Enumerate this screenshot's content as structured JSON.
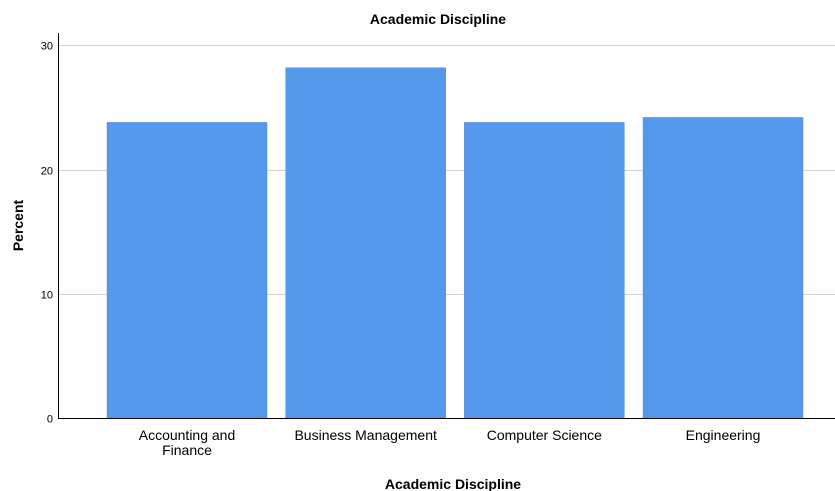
{
  "chart_data": {
    "type": "bar",
    "title": "Academic Discipline",
    "xlabel": "Academic Discipline",
    "ylabel": "Percent",
    "categories": [
      [
        "Accounting and",
        "Finance"
      ],
      [
        "Business Management"
      ],
      [
        "Computer Science"
      ],
      [
        "Engineering"
      ]
    ],
    "values": [
      23.8,
      28.2,
      23.8,
      24.2
    ],
    "ylim": [
      0,
      31
    ],
    "yticks": [
      0,
      10,
      20,
      30
    ],
    "grid": true,
    "colors": {
      "bar": "#5599ec",
      "grid": "#d2d2d2",
      "axis": "#000000"
    }
  }
}
